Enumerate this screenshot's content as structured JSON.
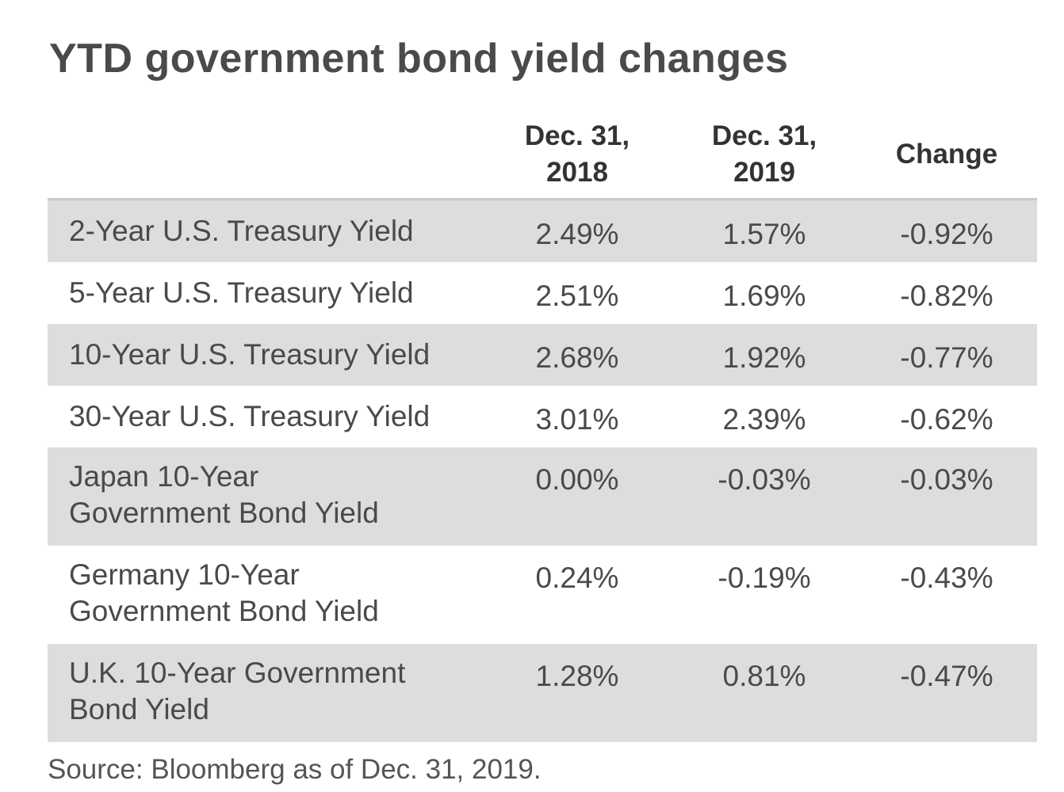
{
  "title": "YTD government bond yield changes",
  "columns": [
    "Dec. 31,\n2018",
    "Dec. 31,\n2019",
    "Change"
  ],
  "source": "Source: Bloomberg as of Dec. 31, 2019.",
  "chart_data": {
    "type": "table",
    "title": "YTD government bond yield changes",
    "columns": [
      "Dec. 31, 2018",
      "Dec. 31, 2019",
      "Change"
    ],
    "rows": [
      {
        "label": "2-Year U.S. Treasury Yield",
        "values": [
          "2.49%",
          "1.57%",
          "-0.92%"
        ],
        "shaded": true
      },
      {
        "label": "5-Year U.S. Treasury Yield",
        "values": [
          "2.51%",
          "1.69%",
          "-0.82%"
        ],
        "shaded": false
      },
      {
        "label": "10-Year U.S. Treasury Yield",
        "values": [
          "2.68%",
          "1.92%",
          "-0.77%"
        ],
        "shaded": true
      },
      {
        "label": "30-Year U.S. Treasury Yield",
        "values": [
          "3.01%",
          "2.39%",
          "-0.62%"
        ],
        "shaded": false
      },
      {
        "label": "Japan 10-Year\nGovernment Bond Yield",
        "values": [
          "0.00%",
          "-0.03%",
          "-0.03%"
        ],
        "shaded": true
      },
      {
        "label": "Germany 10-Year\nGovernment Bond Yield",
        "values": [
          "0.24%",
          "-0.19%",
          "-0.43%"
        ],
        "shaded": false
      },
      {
        "label": "U.K. 10-Year Government\nBond Yield",
        "values": [
          "1.28%",
          "0.81%",
          "-0.47%"
        ],
        "shaded": true
      }
    ],
    "source": "Source: Bloomberg as of Dec. 31, 2019."
  }
}
